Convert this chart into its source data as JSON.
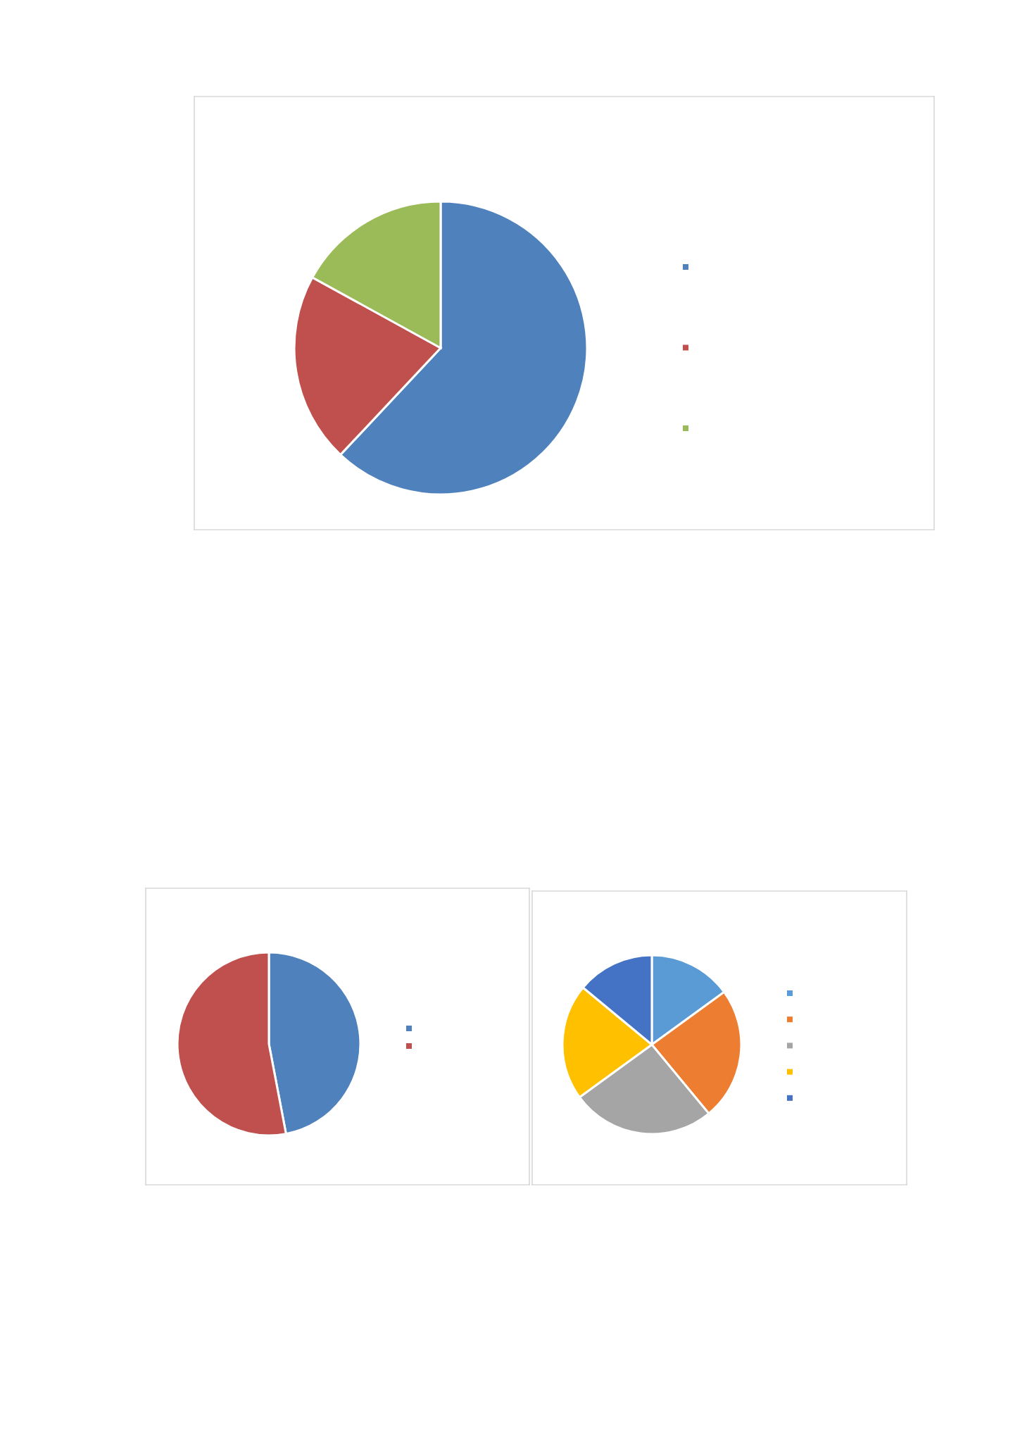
{
  "chart_data": [
    {
      "type": "pie",
      "categories": [
        null,
        null,
        null
      ],
      "values": [
        62,
        21,
        17
      ],
      "colors": [
        "#4f81bd",
        "#c0504d",
        "#9bbb59"
      ]
    },
    {
      "type": "pie",
      "categories": [
        null,
        null
      ],
      "values": [
        47,
        53
      ],
      "colors": [
        "#4f81bd",
        "#c0504d"
      ]
    },
    {
      "type": "pie",
      "categories": [
        null,
        null,
        null,
        null,
        null
      ],
      "values": [
        15,
        24,
        26,
        21,
        14
      ],
      "colors": [
        "#5b9bd5",
        "#ed7d31",
        "#a5a5a5",
        "#ffc000",
        "#4472c4"
      ]
    }
  ]
}
